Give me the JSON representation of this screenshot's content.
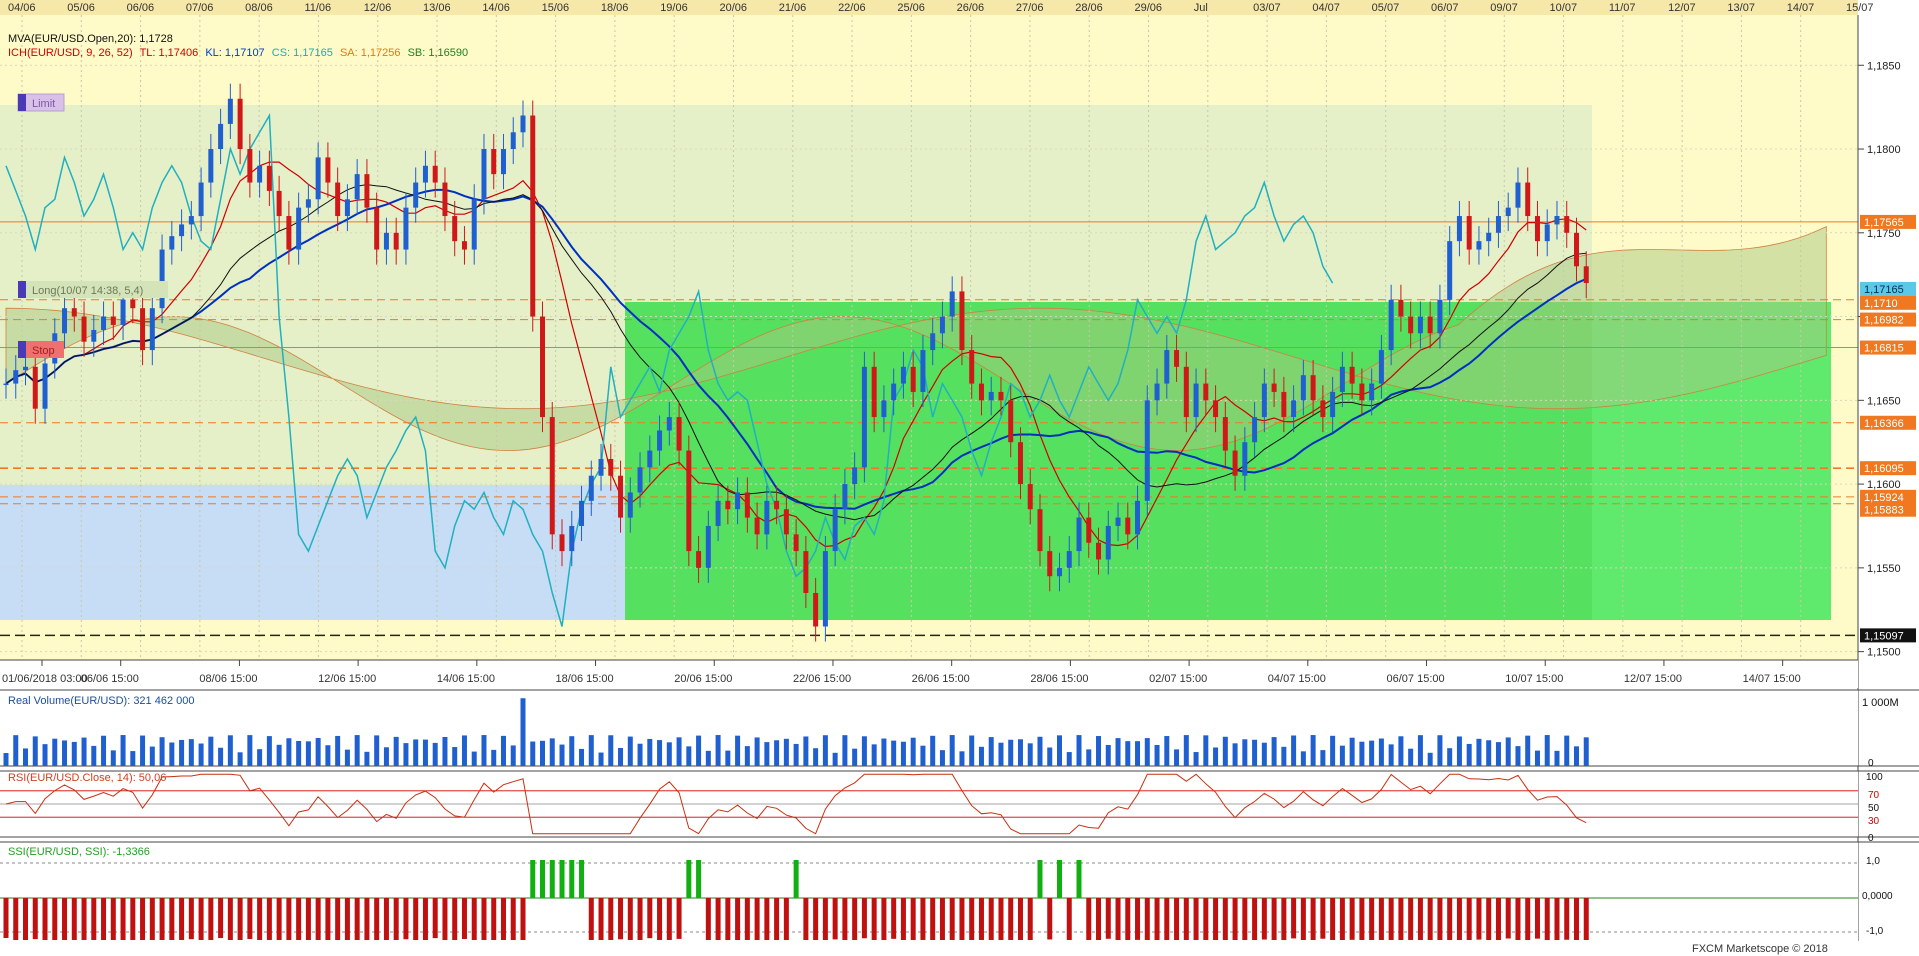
{
  "chart_data": {
    "type": "candlestick",
    "instrument": "EUR/USD",
    "top_dates": [
      "04/06",
      "05/06",
      "06/06",
      "07/06",
      "08/06",
      "11/06",
      "12/06",
      "13/06",
      "14/06",
      "15/06",
      "18/06",
      "19/06",
      "20/06",
      "21/06",
      "22/06",
      "25/06",
      "26/06",
      "27/06",
      "28/06",
      "29/06",
      "Jul",
      "03/07",
      "04/07",
      "05/07",
      "06/07",
      "09/07",
      "10/07",
      "11/07",
      "12/07",
      "13/07",
      "14/07",
      "15/07"
    ],
    "bottom_dates": [
      "01/06/2018 03:00",
      "06/06 15:00",
      "08/06 15:00",
      "12/06 15:00",
      "14/06 15:00",
      "18/06 15:00",
      "20/06 15:00",
      "22/06 15:00",
      "26/06 15:00",
      "28/06 15:00",
      "02/07 15:00",
      "04/07 15:00",
      "06/07 15:00",
      "10/07 15:00",
      "12/07 15:00",
      "14/07 15:00"
    ],
    "price_ticks": [
      "1,1850",
      "1,1800",
      "1,1750",
      "1,1700",
      "1,1650",
      "1,1600",
      "1,1550",
      "1,1500"
    ],
    "price_tick_values": [
      1.185,
      1.18,
      1.175,
      1.17,
      1.165,
      1.16,
      1.155,
      1.15
    ],
    "ylim": [
      1.1495,
      1.188
    ],
    "indicator_lines": {
      "mva": "MVA(EUR/USD.Open,20): 1,1728",
      "ich_prefix": "ICH(EUR/USD, 9, 26, 52)",
      "tl": "TL: 1,17406",
      "kl": "KL: 1,17107",
      "cs": "CS: 1,17165",
      "sa": "SA: 1,17256",
      "sb": "SB: 1,16590"
    },
    "price_markers": [
      {
        "label": "1,17565",
        "value": 1.17565,
        "color": "#f07820"
      },
      {
        "label": "1,17165",
        "value": 1.17165,
        "color": "#5cc8e8"
      },
      {
        "label": "1,1710",
        "value": 1.171,
        "color": "#f07820"
      },
      {
        "label": "1,16982",
        "value": 1.16982,
        "color": "#f07820"
      },
      {
        "label": "1,16815",
        "value": 1.16815,
        "color": "#f07820"
      },
      {
        "label": "1,16366",
        "value": 1.16366,
        "color": "#f07820"
      },
      {
        "label": "1,16095",
        "value": 1.16095,
        "color": "#f07820"
      },
      {
        "label": "1,15924",
        "value": 1.15924,
        "color": "#f07820"
      },
      {
        "label": "1,15883",
        "value": 1.15883,
        "color": "#f07820"
      },
      {
        "label": "1,15097",
        "value": 1.15097,
        "color": "#222222"
      }
    ],
    "order_tags": {
      "limit": "Limit",
      "long": "Long(10/07 14:38, 5,4)",
      "stop": "Stop"
    },
    "closes": [
      1.166,
      1.1668,
      1.167,
      1.1645,
      1.1672,
      1.169,
      1.1705,
      1.17,
      1.1685,
      1.1692,
      1.17,
      1.1695,
      1.171,
      1.1705,
      1.168,
      1.1705,
      1.174,
      1.1748,
      1.1755,
      1.176,
      1.178,
      1.18,
      1.1815,
      1.183,
      1.18,
      1.178,
      1.179,
      1.1775,
      1.176,
      1.174,
      1.1765,
      1.177,
      1.1795,
      1.178,
      1.176,
      1.177,
      1.1785,
      1.1765,
      1.174,
      1.175,
      1.174,
      1.1765,
      1.178,
      1.179,
      1.178,
      1.176,
      1.1745,
      1.174,
      1.177,
      1.18,
      1.1785,
      1.18,
      1.181,
      1.182,
      1.17,
      1.164,
      1.157,
      1.156,
      1.1575,
      1.159,
      1.1605,
      1.1615,
      1.1605,
      1.158,
      1.1595,
      1.161,
      1.162,
      1.1632,
      1.164,
      1.162,
      1.156,
      1.155,
      1.1575,
      1.159,
      1.1585,
      1.1595,
      1.158,
      1.157,
      1.159,
      1.1585,
      1.157,
      1.156,
      1.1535,
      1.1515,
      1.156,
      1.1585,
      1.16,
      1.161,
      1.167,
      1.164,
      1.165,
      1.166,
      1.167,
      1.1655,
      1.168,
      1.169,
      1.17,
      1.1715,
      1.168,
      1.166,
      1.165,
      1.1655,
      1.165,
      1.1625,
      1.16,
      1.1585,
      1.156,
      1.1545,
      1.155,
      1.156,
      1.158,
      1.1565,
      1.1555,
      1.1575,
      1.158,
      1.157,
      1.159,
      1.165,
      1.166,
      1.168,
      1.167,
      1.164,
      1.166,
      1.165,
      1.164,
      1.162,
      1.1605,
      1.1625,
      1.164,
      1.166,
      1.1655,
      1.164,
      1.165,
      1.1665,
      1.165,
      1.164,
      1.1655,
      1.167,
      1.166,
      1.165,
      1.166,
      1.168,
      1.171,
      1.17,
      1.169,
      1.17,
      1.169,
      1.171,
      1.1745,
      1.176,
      1.174,
      1.1745,
      1.175,
      1.176,
      1.1765,
      1.178,
      1.176,
      1.1745,
      1.1755,
      1.176,
      1.175,
      1.173,
      1.172
    ],
    "volume": {
      "label": "Real Volume(EUR/USD): 321 462 000",
      "max_label": "1 000M",
      "min_label": "0"
    },
    "rsi": {
      "label": "RSI(EUR/USD.Close, 14): 50,06",
      "levels": [
        "100",
        "70",
        "50",
        "30",
        "0"
      ]
    },
    "ssi": {
      "label": "SSI(EUR/USD, SSI): -1,3366",
      "levels": [
        "1,0",
        "0,0000",
        "-1,0"
      ]
    },
    "watermark": "FXCM Marketscope © 2018"
  }
}
